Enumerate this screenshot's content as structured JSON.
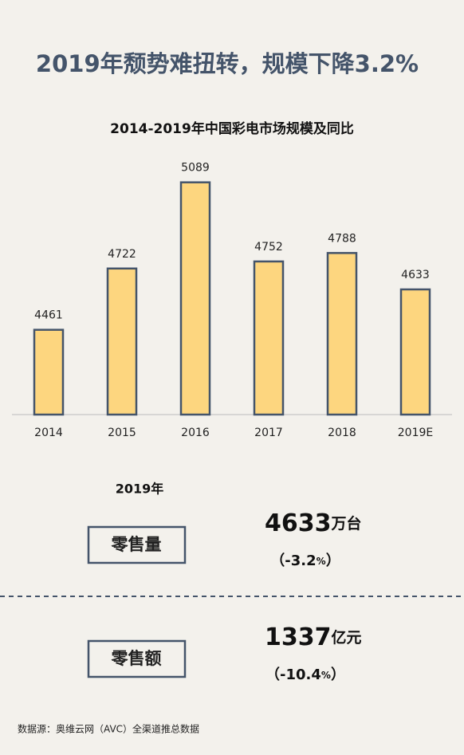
{
  "title": "2019年颓势难扭转，规模下降3.2%",
  "chart_data": {
    "type": "bar",
    "title": "2014-2019年中国彩电市场规模及同比",
    "categories": [
      "2014",
      "2015",
      "2016",
      "2017",
      "2018",
      "2019E"
    ],
    "values": [
      4461,
      4722,
      5089,
      4752,
      4788,
      4633
    ],
    "color": "#fdd67f",
    "ylim": [
      4100,
      5200
    ]
  },
  "summary": {
    "year": "2019年",
    "rows": [
      {
        "label": "零售量",
        "value": "4633",
        "unit": "万台",
        "open": "（",
        "change": "-3.2",
        "pct": "%",
        "close": "）"
      },
      {
        "label": "零售额",
        "value": "1337",
        "unit": "亿元",
        "open": "（",
        "change": "-10.4",
        "pct": "%",
        "close": "）"
      }
    ]
  },
  "source": "数据源：奥维云网（AVC）全渠道推总数据"
}
